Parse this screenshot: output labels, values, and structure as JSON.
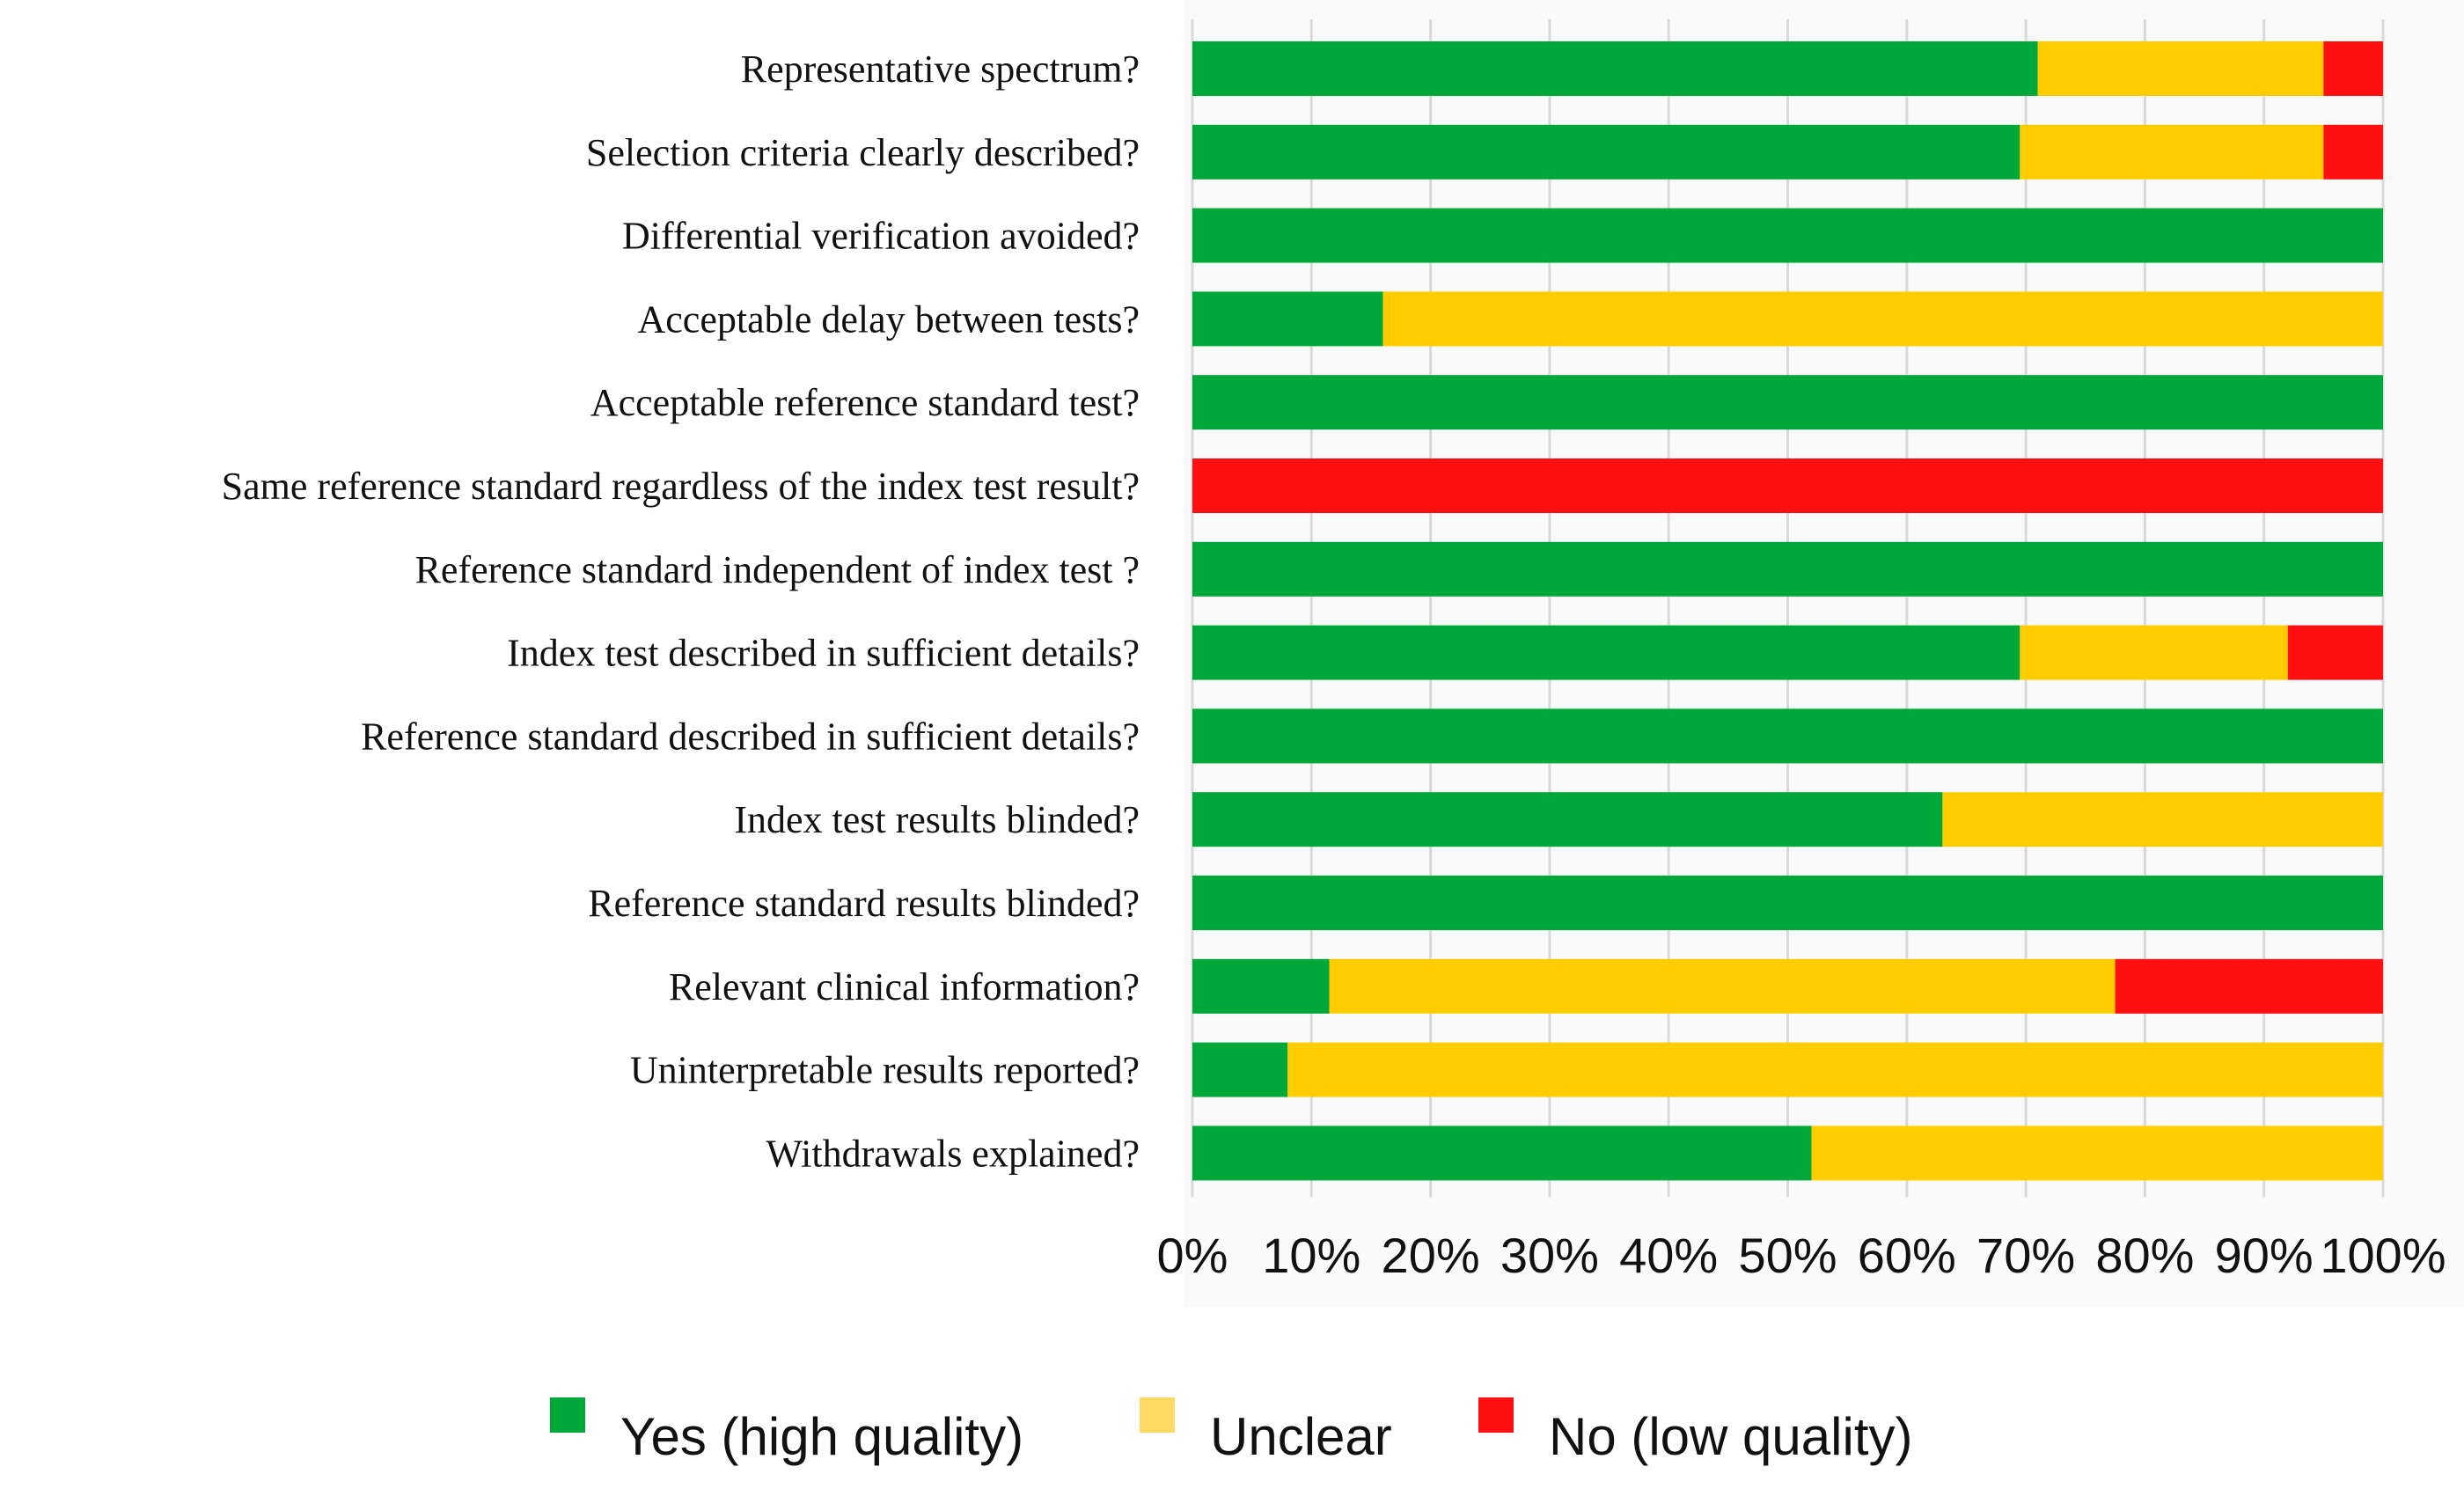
{
  "chart_data": {
    "type": "bar",
    "orientation": "horizontal",
    "stacked": true,
    "normalized": true,
    "title": "",
    "xlabel": "",
    "ylabel": "",
    "xlim": [
      0,
      100
    ],
    "xticks": [
      "0%",
      "10%",
      "20%",
      "30%",
      "40%",
      "50%",
      "60%",
      "70%",
      "80%",
      "90%",
      "100%"
    ],
    "grid": "vertical",
    "legend_position": "bottom",
    "categories": [
      "Representative spectrum?",
      "Selection criteria clearly described?",
      "Differential verification avoided?",
      "Acceptable delay between tests?",
      "Acceptable reference standard test?",
      "Same reference standard regardless of the index test result?",
      "Reference standard independent of index test ?",
      "Index test described in sufficient details?",
      "Reference standard described in sufficient details?",
      "Index test results blinded?",
      "Reference standard results blinded?",
      "Relevant clinical information?",
      "Uninterpretable results reported?",
      "Withdrawals explained?"
    ],
    "series": [
      {
        "name": "Yes (high quality)",
        "color": "#00a83a",
        "values": [
          71,
          69.5,
          100,
          16,
          100,
          0,
          100,
          69.5,
          100,
          63,
          100,
          11.5,
          8,
          52
        ]
      },
      {
        "name": "Unclear",
        "color": "#ffcc00",
        "values": [
          24,
          25.5,
          0,
          84,
          0,
          0,
          0,
          22.5,
          0,
          37,
          0,
          66,
          92,
          48
        ]
      },
      {
        "name": "No (low quality)",
        "color": "#ff1010",
        "values": [
          5,
          5,
          0,
          0,
          0,
          100,
          0,
          8,
          0,
          0,
          0,
          22.5,
          0,
          0
        ]
      }
    ]
  },
  "legend": {
    "items": [
      {
        "label": "Yes (high quality)",
        "color": "#00a83a"
      },
      {
        "label": "Unclear",
        "color": "#ffd966"
      },
      {
        "label": "No (low quality)",
        "color": "#ff1010"
      }
    ]
  }
}
